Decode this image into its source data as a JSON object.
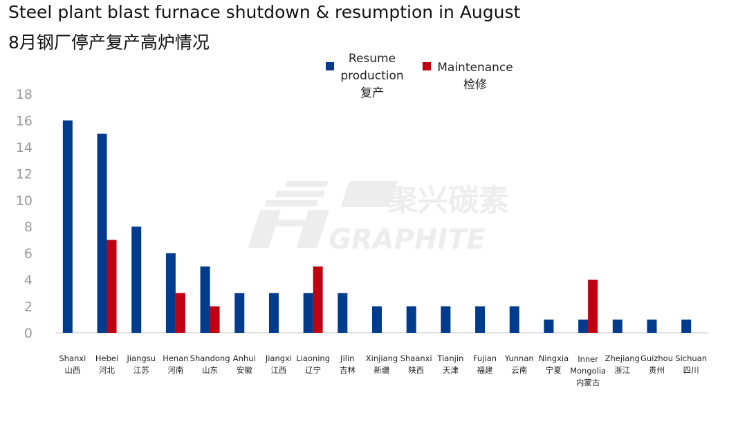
{
  "title_en": "Steel plant blast furnace shutdown & resumption in August",
  "title_cn": "8月钢厂停产复产高炉情况",
  "watermark": {
    "brand_cn": "聚兴碳素",
    "brand_en": "GRAPHITE"
  },
  "colors": {
    "resume": "#003b8e",
    "maintenance": "#c00010",
    "axis": "#d0d0d0"
  },
  "chart_data": {
    "type": "bar",
    "title": "Steel plant blast furnace shutdown & resumption in August",
    "subtitle": "8月钢厂停产复产高炉情况",
    "xlabel": "",
    "ylabel": "",
    "ylim": [
      0,
      18
    ],
    "yticks": [
      0,
      2,
      4,
      6,
      8,
      10,
      12,
      14,
      16,
      18
    ],
    "grid": false,
    "legend_position": "top-center",
    "categories": [
      [
        "Shanxi",
        "山西"
      ],
      [
        "Hebei",
        "河北"
      ],
      [
        "Jiangsu",
        "江苏"
      ],
      [
        "Henan",
        "河南"
      ],
      [
        "Shandong",
        "山东"
      ],
      [
        "Anhui",
        "安徽"
      ],
      [
        "Jiangxi",
        "江西"
      ],
      [
        "Liaoning",
        "辽宁"
      ],
      [
        "Jilin",
        "吉林"
      ],
      [
        "Xinjiang",
        "新疆"
      ],
      [
        "Shaanxi",
        "陕西"
      ],
      [
        "Tianjin",
        "天津"
      ],
      [
        "Fujian",
        "福建"
      ],
      [
        "Yunnan",
        "云南"
      ],
      [
        "Ningxia",
        "宁夏"
      ],
      [
        "Inner",
        "Mongolia",
        "内蒙古"
      ],
      [
        "Zhejiang",
        "浙江"
      ],
      [
        "Guizhou",
        "贵州"
      ],
      [
        "Sichuan",
        "四川"
      ]
    ],
    "series": [
      {
        "name": [
          "Resume",
          "production",
          "复产"
        ],
        "values": [
          16,
          15,
          8,
          6,
          5,
          3,
          3,
          3,
          3,
          2,
          2,
          2,
          2,
          2,
          1,
          1,
          1,
          1,
          1
        ]
      },
      {
        "name": [
          "Maintenance",
          "检修"
        ],
        "values": [
          0,
          7,
          0,
          3,
          2,
          0,
          0,
          5,
          0,
          0,
          0,
          0,
          0,
          0,
          0,
          4,
          0,
          0,
          0
        ]
      }
    ]
  }
}
